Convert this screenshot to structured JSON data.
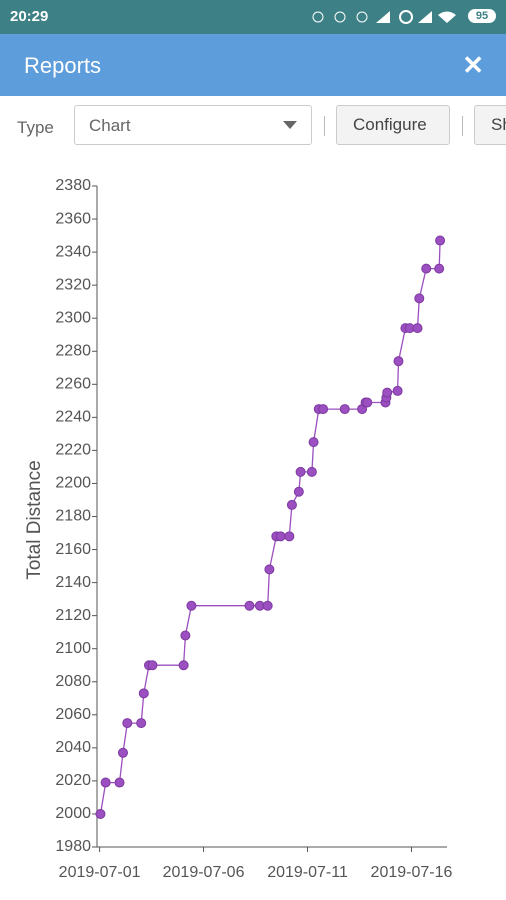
{
  "status_bar": {
    "time": "20:29",
    "battery": "95"
  },
  "header": {
    "title": "Reports"
  },
  "toolbar": {
    "type_label": "Type",
    "select_value": "Chart",
    "configure": "Configure",
    "third_button": "Sh"
  },
  "chart_data": {
    "type": "line",
    "y_label": "Total Distance",
    "color": "#9b4fc0",
    "x": [
      "2019-07-01T01:00",
      "2019-07-01T07:00",
      "2019-07-01T23:00",
      "2019-07-02T03:00",
      "2019-07-02T08:00",
      "2019-07-03T00:00",
      "2019-07-03T03:00",
      "2019-07-03T09:00",
      "2019-07-03T13:00",
      "2019-07-05T01:00",
      "2019-07-05T03:00",
      "2019-07-05T10:00",
      "2019-07-08T05:00",
      "2019-07-08T17:00",
      "2019-07-09T02:00",
      "2019-07-09T04:00",
      "2019-07-09T12:00",
      "2019-07-09T17:00",
      "2019-07-10T03:00",
      "2019-07-10T06:00",
      "2019-07-10T14:00",
      "2019-07-10T16:00",
      "2019-07-11T05:00",
      "2019-07-11T07:00",
      "2019-07-11T13:00",
      "2019-07-11T18:00",
      "2019-07-12T19:00",
      "2019-07-13T15:00",
      "2019-07-13T19:00",
      "2019-07-13T21:00",
      "2019-07-14T18:00",
      "2019-07-14T19:00",
      "2019-07-14T20:00",
      "2019-07-15T08:00",
      "2019-07-15T09:00",
      "2019-07-15T17:00",
      "2019-07-15T22:00",
      "2019-07-16T07:00",
      "2019-07-16T09:00",
      "2019-07-16T17:00",
      "2019-07-17T08:00",
      "2019-07-17T09:00"
    ],
    "values": [
      2000,
      2019,
      2019,
      2037,
      2055,
      2055,
      2073,
      2090,
      2090,
      2090,
      2108,
      2126,
      2126,
      2126,
      2126,
      2148,
      2168,
      2168,
      2168,
      2187,
      2195,
      2207,
      2207,
      2225,
      2245,
      2245,
      2245,
      2245,
      2249,
      2249,
      2249,
      2252,
      2255,
      2256,
      2274,
      2294,
      2294,
      2294,
      2312,
      2330,
      2330,
      2347
    ],
    "xlim": [
      "2019-06-30T21:00",
      "2019-07-17T17:00"
    ],
    "xticks": [
      "2019-07-01",
      "2019-07-06",
      "2019-07-11",
      "2019-07-16"
    ],
    "ylim": [
      1980,
      2380
    ],
    "yticks": [
      1980,
      2000,
      2020,
      2040,
      2060,
      2080,
      2100,
      2120,
      2140,
      2160,
      2180,
      2200,
      2220,
      2240,
      2260,
      2280,
      2300,
      2320,
      2340,
      2360,
      2380
    ]
  }
}
